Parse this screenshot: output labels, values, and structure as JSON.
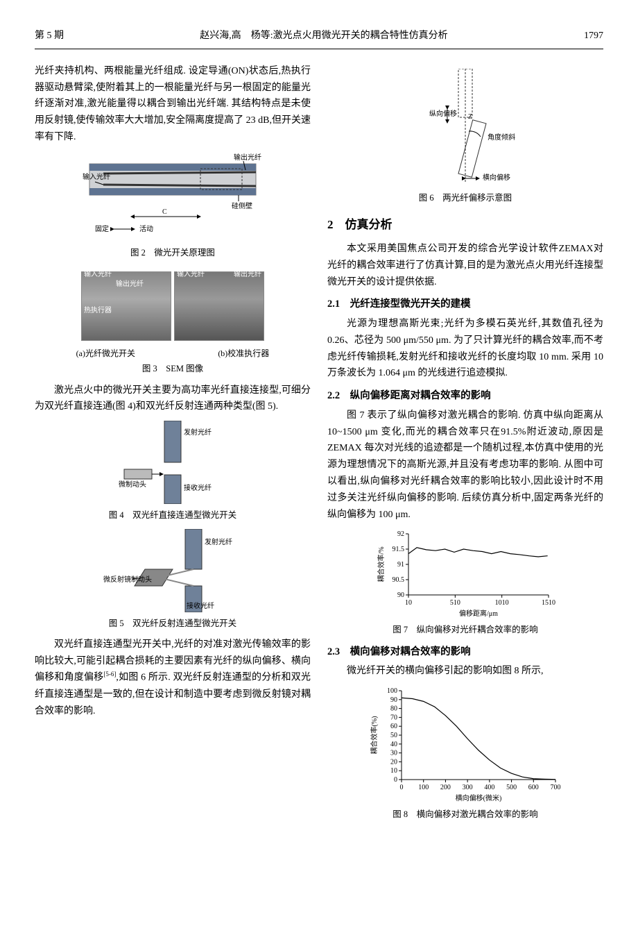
{
  "header": {
    "issue": "第 5 期",
    "running": "赵兴海,高　杨等:激光点火用微光开关的耦合特性仿真分析",
    "page": "1797"
  },
  "leftcol": {
    "para1": "光纤夹持机构、两根能量光纤组成. 设定导通(ON)状态后,热执行器驱动悬臂梁,使附着其上的一根能量光纤与另一根固定的能量光纤逐渐对准,激光能量得以耦合到输出光纤端. 其结构特点是未使用反射镜,使传输效率大大增加,安全隔离度提高了 23 dB,但开关速率有下降.",
    "fig2": {
      "labels": {
        "out": "输出光纤",
        "in": "输入光纤",
        "wall": "硅侧壁",
        "fixed": "固定",
        "movable": "活动",
        "c": "C"
      },
      "caption": "图 2　微光开关原理图"
    },
    "fig3": {
      "labels": {
        "a_in": "输入光纤",
        "a_out": "输出光纤",
        "b_in": "输入光纤",
        "b_out": "输出光纤",
        "actuator": "热执行器"
      },
      "sub_a": "(a)光纤微光开关",
      "sub_b": "(b)校准执行器",
      "caption": "图 3　SEM 图像"
    },
    "para2": "激光点火中的微光开关主要为高功率光纤直接连接型,可细分为双光纤直接连通(图 4)和双光纤反射连通两种类型(图 5).",
    "fig4": {
      "labels": {
        "emit": "发射光纤",
        "recv": "接收光纤",
        "brake": "微制动头"
      },
      "caption": "图 4　双光纤直接连通型微光开关"
    },
    "fig5": {
      "labels": {
        "emit": "发射光纤",
        "recv": "接收光纤",
        "mirror": "微反射镜制动头"
      },
      "caption": "图 5　双光纤反射连通型微光开关"
    },
    "para3": "双光纤直接连通型光开关中,光纤的对准对激光传输效率的影响比较大,可能引起耦合损耗的主要因素有光纤的纵向偏移、横向偏移和角度偏移",
    "para3_ref": "[5-6]",
    "para3_cont": ",如图 6 所示. 双光纤反射连通型的分析和双光纤直接连通型是一致的,但在设计和制造中要考虑到微反射镜对耦合效率的影响."
  },
  "rightcol": {
    "fig6": {
      "labels": {
        "long": "纵向偏移",
        "z": "Z",
        "angle": "角度倾斜",
        "trans": "横向偏移"
      },
      "caption": "图 6　两光纤偏移示意图"
    },
    "sec2": {
      "title": "2　仿真分析"
    },
    "para_sec2": "本文采用美国焦点公司开发的综合光学设计软件ZEMAX对光纤的耦合效率进行了仿真计算,目的是为激光点火用光纤连接型微光开关的设计提供依据.",
    "sec21": {
      "title": "2.1　光纤连接型微光开关的建模"
    },
    "para21": "光源为理想高斯光束;光纤为多模石英光纤,其数值孔径为 0.26、芯径为 500 μm/550 μm. 为了只计算光纤的耦合效率,而不考虑光纤传输损耗,发射光纤和接收光纤的长度均取 10 mm. 采用 10 万条波长为 1.064 μm 的光线进行追迹模拟.",
    "sec22": {
      "title": "2.2　纵向偏移距离对耦合效率的影响"
    },
    "para22": "图 7 表示了纵向偏移对激光耦合的影响. 仿真中纵向距离从 10~1500 μm 变化,而光的耦合效率只在91.5%附近波动,原因是 ZEMAX 每次对光线的追迹都是一个随机过程,本仿真中使用的光源为理想情况下的高斯光源,并且没有考虑功率的影响. 从图中可以看出,纵向偏移对光纤耦合效率的影响比较小,因此设计时不用过多关注光纤纵向偏移的影响. 后续仿真分析中,固定两条光纤的纵向偏移为 100 μm.",
    "chart7": {
      "caption": "图 7　纵向偏移对光纤耦合效率的影响",
      "ylabel": "耦合效率/%",
      "xlabel": "偏移距离/μm",
      "ylim": [
        90,
        92
      ],
      "yticks": [
        90,
        90.5,
        91,
        91.5,
        92
      ],
      "xlim": [
        10,
        1510
      ],
      "xticks": [
        10,
        510,
        1010,
        1510
      ],
      "data_x": [
        10,
        100,
        200,
        300,
        400,
        500,
        600,
        700,
        800,
        900,
        1000,
        1100,
        1200,
        1300,
        1400,
        1500
      ],
      "data_y": [
        91.35,
        91.55,
        91.48,
        91.45,
        91.5,
        91.4,
        91.5,
        91.45,
        91.42,
        91.35,
        91.42,
        91.35,
        91.32,
        91.28,
        91.25,
        91.28
      ],
      "line_color": "#000000",
      "line_width": 1.2,
      "bg": "#ffffff",
      "axis_color": "#000000",
      "font_size": 10
    },
    "sec23": {
      "title": "2.3　横向偏移对耦合效率的影响"
    },
    "para23": "微光纤开关的横向偏移引起的影响如图 8 所示,",
    "chart8": {
      "caption": "图 8　横向偏移对激光耦合效率的影响",
      "ylabel": "耦合效率(%)",
      "xlabel": "横向偏移(微米)",
      "ylim": [
        0,
        100
      ],
      "yticks": [
        0,
        10,
        20,
        30,
        40,
        50,
        60,
        70,
        80,
        90,
        100
      ],
      "xlim": [
        0,
        700
      ],
      "xticks": [
        0,
        100,
        200,
        300,
        400,
        500,
        600,
        700
      ],
      "data_x": [
        0,
        50,
        100,
        150,
        200,
        250,
        300,
        350,
        400,
        450,
        500,
        550,
        600,
        650,
        700
      ],
      "data_y": [
        92,
        91,
        88,
        82,
        72,
        60,
        46,
        33,
        22,
        13,
        7,
        3,
        1,
        0.5,
        0.2
      ],
      "line_color": "#000000",
      "line_width": 1.2,
      "bg": "#ffffff",
      "axis_color": "#000000",
      "font_size": 10
    }
  }
}
